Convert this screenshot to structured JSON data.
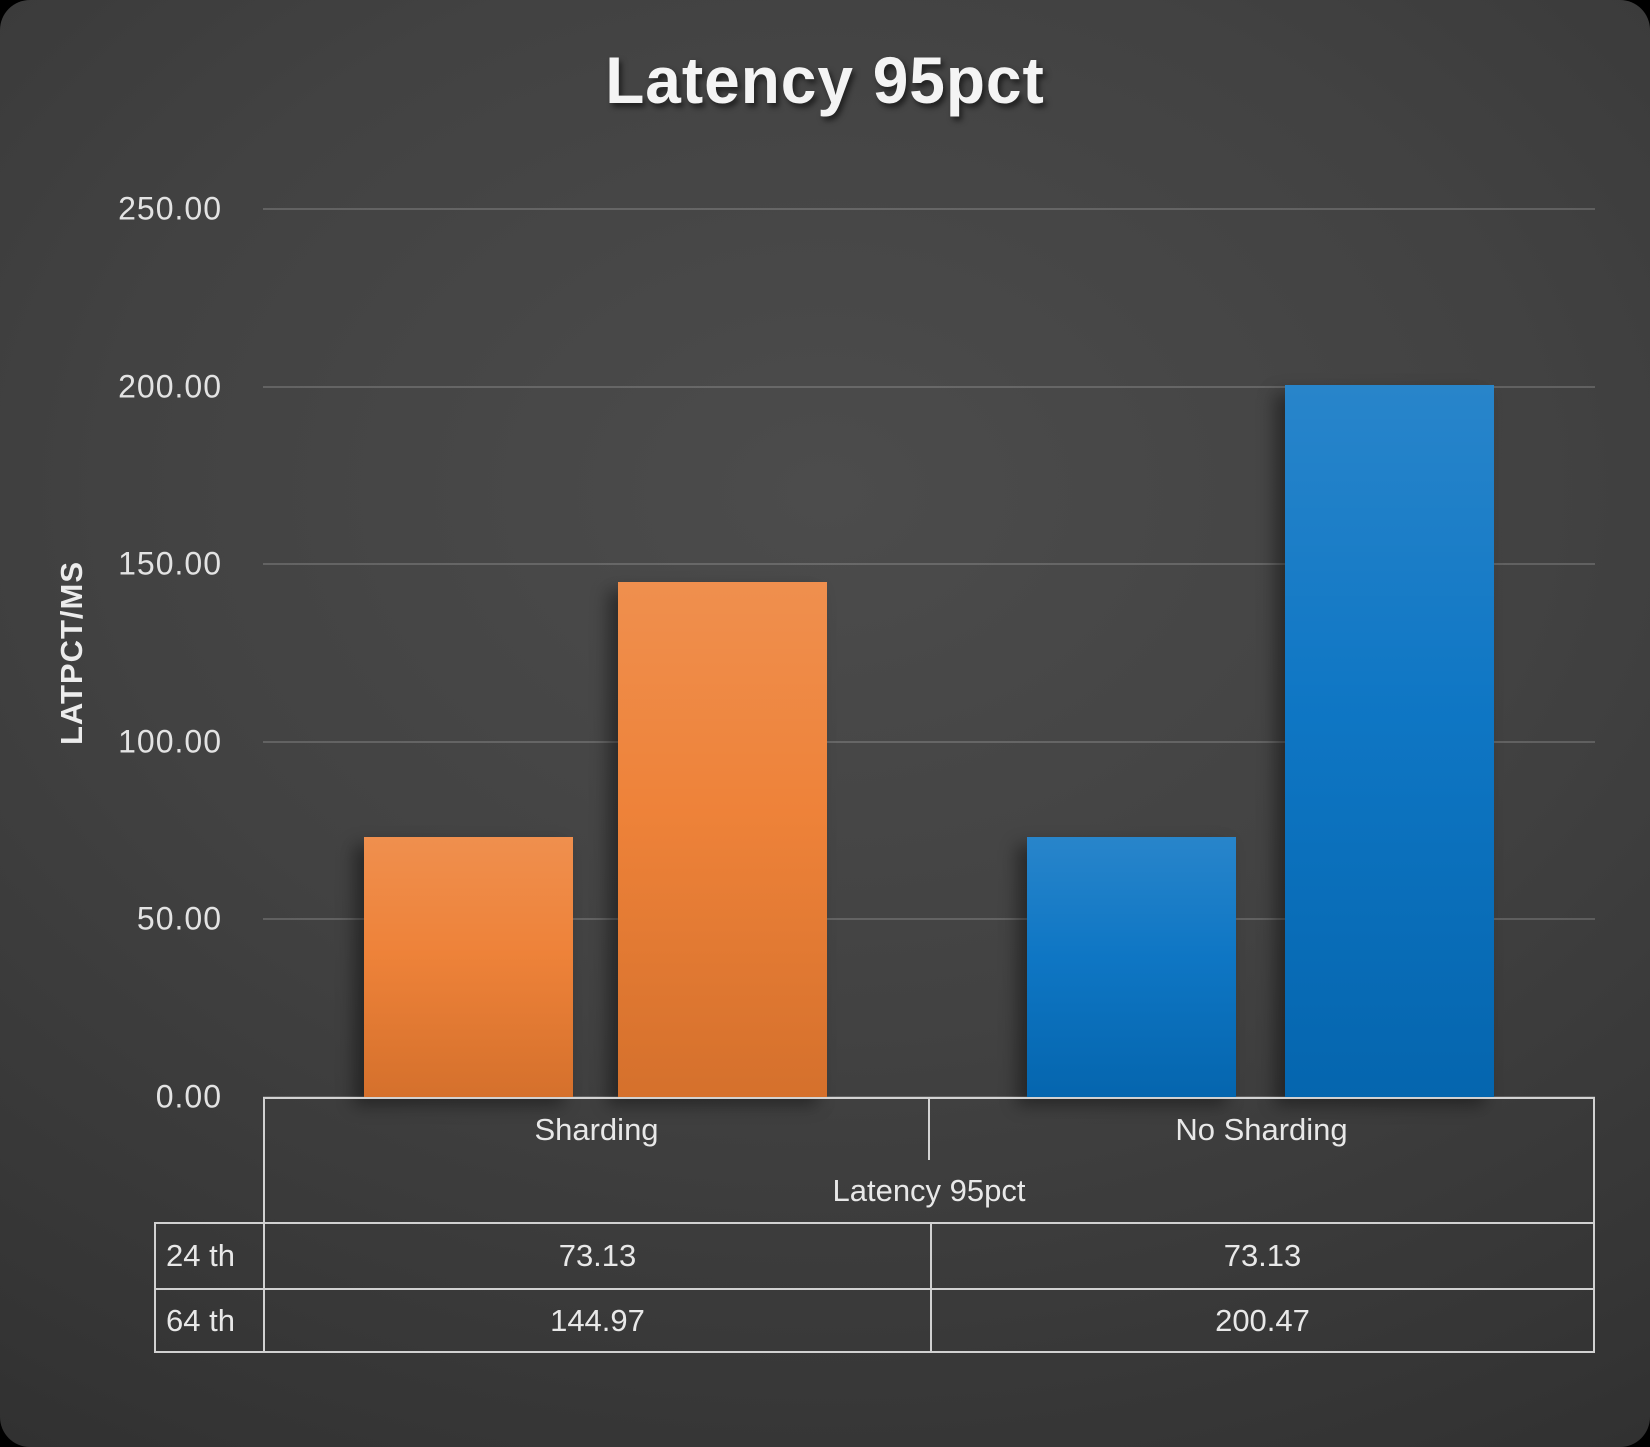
{
  "title": "Latency 95pct",
  "y_axis": {
    "label": "LATPCT/MS",
    "ticks": [
      "250.00",
      "200.00",
      "150.00",
      "100.00",
      "50.00",
      "0.00"
    ]
  },
  "chart_data": {
    "type": "bar",
    "title": "Latency 95pct",
    "categories": [
      "Sharding",
      "No Sharding"
    ],
    "category_group_label": "Latency 95pct",
    "series": [
      {
        "name": "24 th",
        "values": [
          73.13,
          73.13
        ]
      },
      {
        "name": "64 th",
        "values": [
          144.97,
          200.47
        ]
      }
    ],
    "xlabel": "",
    "ylabel": "LATPCT/MS",
    "ylim": [
      0,
      250
    ],
    "ytick_step": 50,
    "grid": true,
    "legend_position": "data-table-below",
    "colors": [
      "#ED7D31",
      "#0571C2"
    ]
  },
  "table": {
    "headers": [
      "Sharding",
      "No Sharding"
    ],
    "group_label": "Latency 95pct",
    "rows": [
      {
        "label": "24 th",
        "values": [
          "73.13",
          "73.13"
        ]
      },
      {
        "label": "64 th",
        "values": [
          "144.97",
          "200.47"
        ]
      }
    ]
  }
}
